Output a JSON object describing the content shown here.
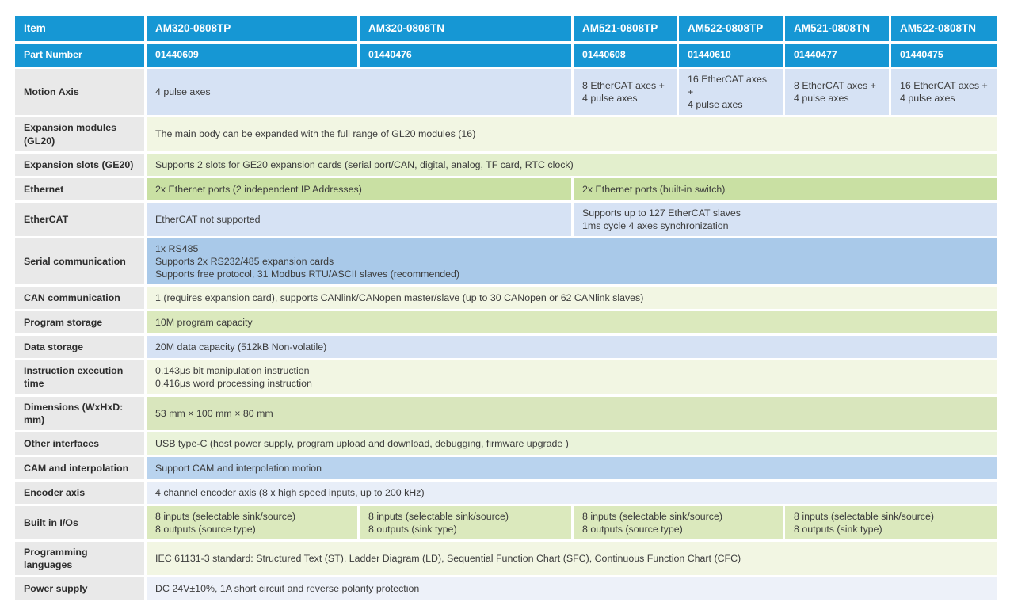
{
  "palette": {
    "header_blue": "#1697d4",
    "label_gray": "#e9e9e9",
    "blueLight": "#d6e2f4",
    "blueMed": "#a9c9e9",
    "blueCam": "#b9d3ee",
    "blueVeryLight": "#e8eef8",
    "bluePower": "#edf1f9",
    "creamPale": "#f2f6e3",
    "greenLight": "#e3efcd",
    "greenPale": "#eaf3da",
    "greenMed": "#c9e0a3",
    "greenDim": "#d9e6bd",
    "greenRich": "#dbe9bd"
  },
  "table": {
    "header": {
      "item_label": "Item",
      "models": [
        "AM320-0808TP",
        "AM320-0808TN",
        "AM521-0808TP",
        "AM522-0808TP",
        "AM521-0808TN",
        "AM522-0808TN"
      ]
    },
    "part_number": {
      "label": "Part Number",
      "values": [
        "01440609",
        "01440476",
        "01440608",
        "01440610",
        "01440477",
        "01440475"
      ]
    },
    "rows": [
      {
        "key": "motion-axis",
        "label": "Motion Axis",
        "bg": "blueLight",
        "cells": [
          {
            "text": "4 pulse axes",
            "span": 2
          },
          {
            "text": "8 EtherCAT axes +\n4 pulse axes",
            "span": 1
          },
          {
            "text": "16 EtherCAT axes +\n4 pulse axes",
            "span": 1
          },
          {
            "text": "8 EtherCAT axes +\n4 pulse axes",
            "span": 1
          },
          {
            "text": "16 EtherCAT axes  +\n4 pulse axes",
            "span": 1
          }
        ]
      },
      {
        "key": "expansion-modules",
        "label": "Expansion modules (GL20)",
        "bg": "creamPale",
        "cells": [
          {
            "text": "The main body can be expanded with the full range of GL20 modules (16)",
            "span": 6
          }
        ]
      },
      {
        "key": "expansion-slots",
        "label": "Expansion slots (GE20)",
        "bg": "greenLight",
        "cells": [
          {
            "text": "Supports 2 slots for GE20 expansion cards (serial port/CAN, digital, analog, TF card, RTC clock)",
            "span": 6
          }
        ]
      },
      {
        "key": "ethernet",
        "label": "Ethernet",
        "bg": "greenMed",
        "cells": [
          {
            "text": "2x Ethernet ports (2 independent IP Addresses)",
            "span": 2
          },
          {
            "text": "2x Ethernet ports (built-in switch)",
            "span": 4
          }
        ]
      },
      {
        "key": "ethercat",
        "label": "EtherCAT",
        "bg": "blueLight",
        "cells": [
          {
            "text": "EtherCAT not supported",
            "span": 2
          },
          {
            "text": "Supports up to 127 EtherCAT slaves\n1ms cycle 4 axes synchronization",
            "span": 4
          }
        ]
      },
      {
        "key": "serial-communication",
        "label": "Serial communication",
        "bg": "blueMed",
        "cells": [
          {
            "text": "1x RS485\nSupports 2x RS232/485 expansion cards\nSupports free protocol, 31 Modbus RTU/ASCII slaves (recommended)",
            "span": 6
          }
        ]
      },
      {
        "key": "can-communication",
        "label": "CAN communication",
        "bg": "creamPale",
        "cells": [
          {
            "text": "1 (requires expansion card), supports CANlink/CANopen master/slave (up to 30 CANopen or 62 CANlink slaves)",
            "span": 6
          }
        ]
      },
      {
        "key": "program-storage",
        "label": "Program storage",
        "bg": "greenRich",
        "cells": [
          {
            "text": "10M program capacity",
            "span": 6
          }
        ]
      },
      {
        "key": "data-storage",
        "label": "Data storage",
        "bg": "blueLight",
        "cells": [
          {
            "text": "20M data capacity (512kB Non-volatile)",
            "span": 6
          }
        ]
      },
      {
        "key": "instruction-execution-time",
        "label": "Instruction execution time",
        "bg": "creamPale",
        "cells": [
          {
            "text": "0.143μs bit manipulation instruction\n0.416μs word processing instruction",
            "span": 6
          }
        ]
      },
      {
        "key": "dimensions",
        "label": "Dimensions (WxHxD: mm)",
        "bg": "greenDim",
        "cells": [
          {
            "text": "53 mm × 100 mm × 80 mm",
            "span": 6
          }
        ]
      },
      {
        "key": "other-interfaces",
        "label": "Other interfaces",
        "bg": "greenPale",
        "cells": [
          {
            "text": "USB type-C (host power supply, program upload and download, debugging, firmware upgrade )",
            "span": 6
          }
        ]
      },
      {
        "key": "cam-interpolation",
        "label": "CAM and interpolation",
        "bg": "blueCam",
        "cells": [
          {
            "text": "Support CAM and interpolation motion",
            "span": 6
          }
        ]
      },
      {
        "key": "encoder-axis",
        "label": "Encoder axis",
        "bg": "blueVeryLight",
        "cells": [
          {
            "text": "4 channel encoder axis (8 x high speed inputs, up to 200 kHz)",
            "span": 6
          }
        ]
      },
      {
        "key": "built-in-ios",
        "label": "Built in I/Os",
        "bg": "greenRich",
        "cells": [
          {
            "text": "8 inputs (selectable sink/source)\n8 outputs (source type)",
            "span": 1
          },
          {
            "text": "8 inputs (selectable sink/source)\n8 outputs (sink type)",
            "span": 1
          },
          {
            "text": "8 inputs (selectable sink/source)\n8 outputs (source type)",
            "span": 2
          },
          {
            "text": "8 inputs (selectable sink/source)\n8 outputs (sink type)",
            "span": 2
          }
        ]
      },
      {
        "key": "programming-languages",
        "label": "Programming languages",
        "bg": "creamPale",
        "cells": [
          {
            "text": "IEC 61131-3 standard:  Structured Text (ST), Ladder Diagram (LD), Sequential Function Chart (SFC), Continuous Function Chart (CFC)",
            "span": 6
          }
        ]
      },
      {
        "key": "power-supply",
        "label": "Power supply",
        "bg": "bluePower",
        "cells": [
          {
            "text": "DC 24V±10%, 1A short circuit and reverse polarity protection",
            "span": 6
          }
        ]
      }
    ]
  }
}
